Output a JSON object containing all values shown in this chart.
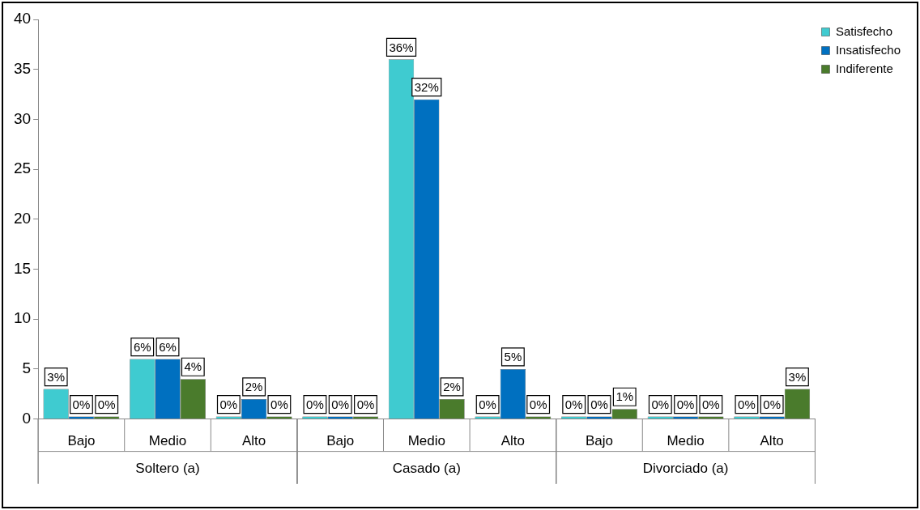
{
  "chart_data": {
    "type": "bar",
    "categories": [
      "Bajo",
      "Medio",
      "Alto",
      "Bajo",
      "Medio",
      "Alto",
      "Bajo",
      "Medio",
      "Alto"
    ],
    "annotations": [
      "Soltero (a)",
      "Casado (a)",
      "Divorciado (a)"
    ],
    "series": [
      {
        "name": "Satisfecho",
        "color": "#3fcbd0",
        "values": [
          3,
          6,
          0,
          0,
          36,
          0,
          0,
          0,
          0
        ],
        "value_labels": [
          "3%",
          "6%",
          "0%",
          "0%",
          "36%",
          "0%",
          "0%",
          "0%",
          "0%"
        ]
      },
      {
        "name": "Insatisfecho",
        "color": "#0070c0",
        "values": [
          0,
          6,
          2,
          0,
          32,
          5,
          0,
          0,
          0
        ],
        "value_labels": [
          "0%",
          "6%",
          "2%",
          "0%",
          "32%",
          "5%",
          "0%",
          "0%",
          "0%"
        ]
      },
      {
        "name": "Indiferente",
        "color": "#4a7b2c",
        "values": [
          0,
          4,
          0,
          0,
          2,
          0,
          1,
          0,
          3
        ],
        "value_labels": [
          "0%",
          "4%",
          "0%",
          "0%",
          "2%",
          "0%",
          "1%",
          "0%",
          "3%"
        ]
      }
    ],
    "ylim": [
      0,
      40
    ],
    "yticks": [
      0,
      5,
      10,
      15,
      20,
      25,
      30,
      35,
      40
    ],
    "grid": false,
    "legend": "top right"
  }
}
